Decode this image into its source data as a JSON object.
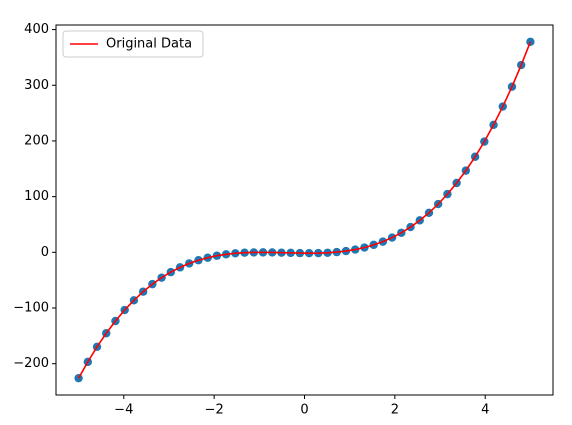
{
  "chart_data": {
    "type": "line",
    "x": [
      -5,
      -4.796,
      -4.592,
      -4.388,
      -4.184,
      -3.98,
      -3.776,
      -3.571,
      -3.367,
      -3.163,
      -2.959,
      -2.755,
      -2.551,
      -2.347,
      -2.143,
      -1.939,
      -1.735,
      -1.531,
      -1.327,
      -1.122,
      -0.918,
      -0.714,
      -0.51,
      -0.306,
      -0.102,
      0.102,
      0.306,
      0.51,
      0.714,
      0.918,
      1.122,
      1.327,
      1.531,
      1.735,
      1.939,
      2.143,
      2.347,
      2.551,
      2.755,
      2.959,
      3.163,
      3.367,
      3.571,
      3.776,
      3.98,
      4.184,
      4.388,
      4.592,
      4.796,
      5
    ],
    "series": [
      {
        "type": "scatter",
        "color": "#1f77b4",
        "values": [
          -226,
          -196.7,
          -169.7,
          -145.3,
          -123.3,
          -103.6,
          -86.2,
          -70.7,
          -57.1,
          -45.5,
          -35.5,
          -27,
          -19.9,
          -14.2,
          -9.7,
          -6.1,
          -3.6,
          -1.8,
          -0.7,
          -0.2,
          -0.1,
          -0.2,
          -0.6,
          -1,
          -1.4,
          -1.5,
          -1.4,
          -0.8,
          0.4,
          2.3,
          5,
          8.6,
          13.4,
          19.2,
          26.5,
          35.1,
          45.4,
          57.4,
          71,
          86.7,
          104.5,
          124.5,
          146.7,
          171.6,
          198.8,
          228.9,
          261.7,
          297.4,
          336.3,
          378
        ]
      },
      {
        "type": "line",
        "name": "Original Data",
        "color": "#ff0000",
        "values": [
          -226,
          -196.7,
          -169.7,
          -145.3,
          -123.3,
          -103.6,
          -86.2,
          -70.7,
          -57.1,
          -45.5,
          -35.5,
          -27,
          -19.9,
          -14.2,
          -9.7,
          -6.1,
          -3.6,
          -1.8,
          -0.7,
          -0.2,
          -0.1,
          -0.2,
          -0.6,
          -1,
          -1.4,
          -1.5,
          -1.4,
          -0.8,
          0.4,
          2.3,
          5,
          8.6,
          13.4,
          19.2,
          26.5,
          35.1,
          45.4,
          57.4,
          71,
          86.7,
          104.5,
          124.5,
          146.7,
          171.6,
          198.8,
          228.9,
          261.7,
          297.4,
          336.3,
          378
        ]
      }
    ],
    "xlim": [
      -5.5,
      5.5
    ],
    "ylim": [
      -256.2,
      408.2
    ],
    "xticks": [
      {
        "value": -4,
        "label": "−4"
      },
      {
        "value": -2,
        "label": "−2"
      },
      0,
      2,
      4
    ],
    "yticks": [
      {
        "value": -200,
        "label": "−200"
      },
      {
        "value": -100,
        "label": "−100"
      },
      0,
      100,
      200,
      300,
      400
    ],
    "legend": "upper left"
  }
}
